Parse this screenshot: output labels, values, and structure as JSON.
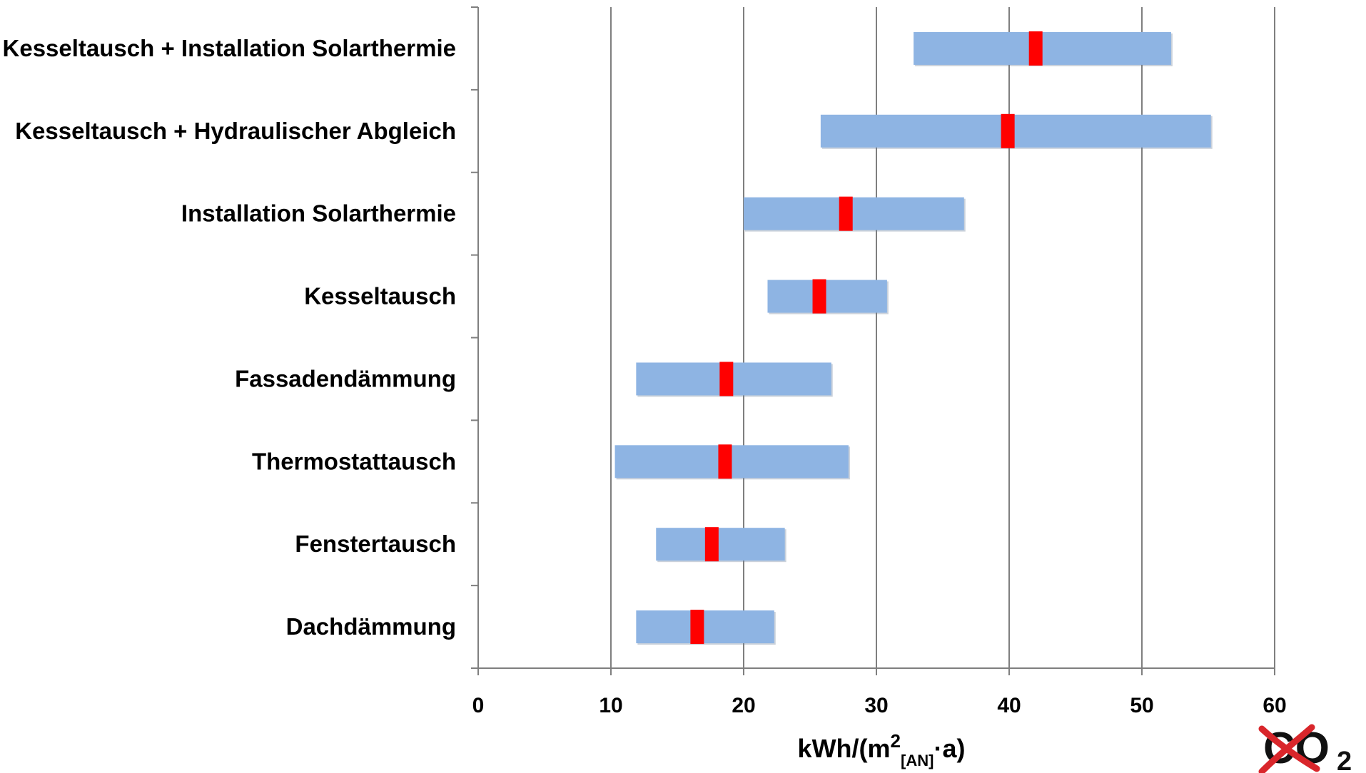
{
  "chart_data": {
    "type": "bar",
    "orientation": "horizontal-range",
    "categories": [
      "Kesseltausch + Installation Solarthermie",
      "Kesseltausch + Hydraulischer Abgleich",
      "Installation Solarthermie",
      "Kesseltausch",
      "Fassadendämmung",
      "Thermostattausch",
      "Fenstertausch",
      "Dachdämmung"
    ],
    "ranges": [
      {
        "min": 32.8,
        "max": 52.2,
        "marker": 42.0
      },
      {
        "min": 25.8,
        "max": 55.2,
        "marker": 39.9
      },
      {
        "min": 20.0,
        "max": 36.6,
        "marker": 27.7
      },
      {
        "min": 21.8,
        "max": 30.8,
        "marker": 25.7
      },
      {
        "min": 11.9,
        "max": 26.6,
        "marker": 18.7
      },
      {
        "min": 10.3,
        "max": 27.9,
        "marker": 18.6
      },
      {
        "min": 13.4,
        "max": 23.1,
        "marker": 17.6
      },
      {
        "min": 11.9,
        "max": 22.3,
        "marker": 16.5
      }
    ],
    "xlim": [
      0,
      60
    ],
    "xticks": [
      "0",
      "10",
      "20",
      "30",
      "40",
      "50",
      "60"
    ],
    "xlabel": {
      "prefix": "kWh/(m",
      "sup": "2",
      "sub": "[AN]",
      "suffix": "·a)"
    },
    "grid": "vertical",
    "colors": {
      "range_bar": "#8EB4E3",
      "marker": "#FF0000",
      "grid": "#7F7F7F",
      "axis": "#7F7F7F"
    }
  },
  "logo": {
    "text": "CO",
    "subscript": "2",
    "icon": "crossed-out-co2-logo",
    "cross_color": "#D9262B"
  }
}
